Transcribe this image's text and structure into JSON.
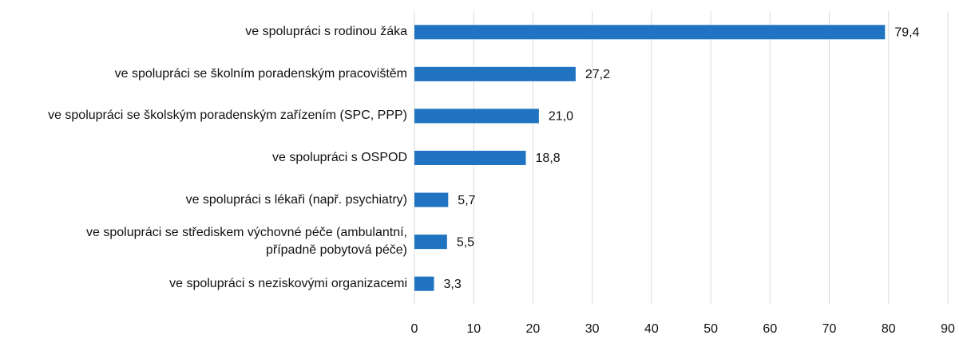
{
  "chart_data": {
    "type": "bar",
    "orientation": "horizontal",
    "categories": [
      "ve spolupráci s rodinou žáka",
      "ve spolupráci se školním poradenským pracovištěm",
      "ve spolupráci se školským  poradenským zařízením (SPC, PPP)",
      "ve spolupráci s OSPOD",
      "ve spolupráci s lékaři (např. psychiatry)",
      "ve spolupráci se střediskem výchovné péče (ambulantní,\npřípadně pobytová péče)",
      "ve spolupráci s neziskovými organizacemi"
    ],
    "values": [
      79.4,
      27.2,
      21.0,
      18.8,
      5.7,
      5.5,
      3.3
    ],
    "value_labels": [
      "79,4",
      "27,2",
      "21,0",
      "18,8",
      "5,7",
      "5,5",
      "3,3"
    ],
    "color": "#1f73c0",
    "xlim": [
      0,
      90
    ],
    "xticks": [
      0,
      10,
      20,
      30,
      40,
      50,
      60,
      70,
      80,
      90
    ],
    "grid": true
  }
}
